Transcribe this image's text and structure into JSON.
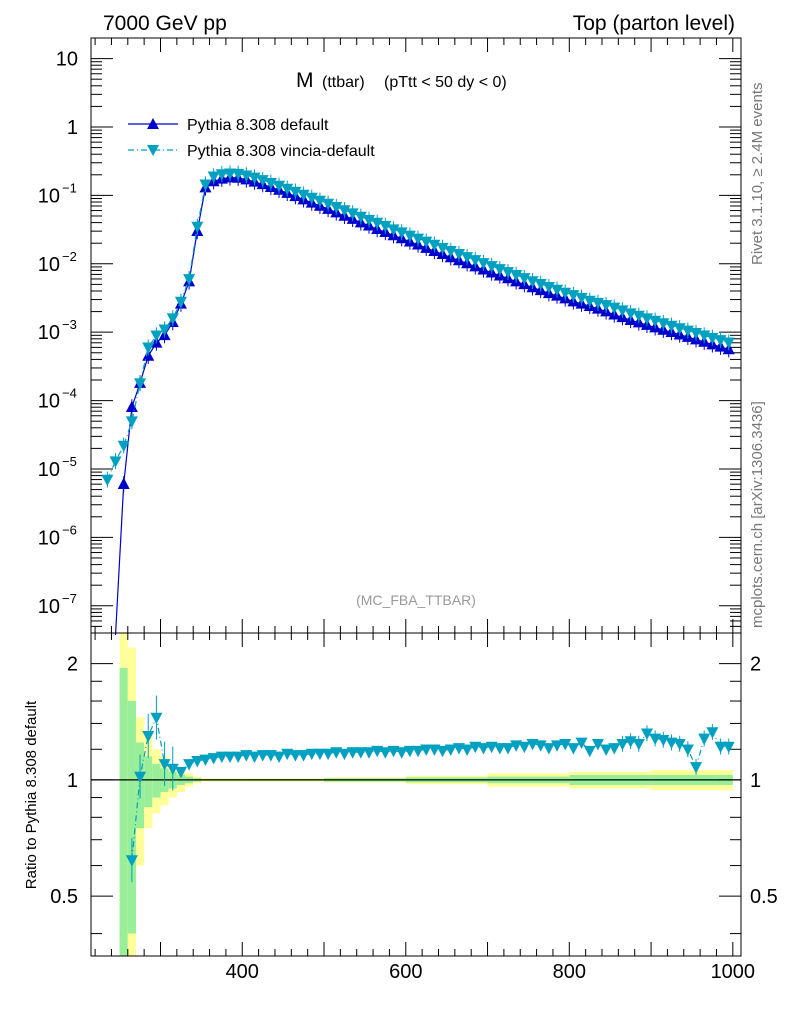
{
  "header": {
    "left": "7000 GeV pp",
    "right": "Top (parton level)"
  },
  "side_labels": {
    "rivet": "Rivet 3.1.10, ≥ 2.4M events",
    "mcplots": "mcplots.cern.ch [arXiv:1306.3436]"
  },
  "plot_title": {
    "main": "M",
    "sub": "(ttbar)",
    "cuts": "(pTtt < 50 dy < 0)"
  },
  "watermark": "(MC_FBA_TTBAR)",
  "chart_data": [
    {
      "type": "line",
      "scale": "log",
      "ylim": [
        4e-08,
        20
      ],
      "xlim": [
        215,
        1010
      ],
      "y_ticks": [
        {
          "value": 10,
          "label": "10"
        },
        {
          "value": 1,
          "label": "1"
        },
        {
          "value": 0.1,
          "label": "10",
          "exp": "−1"
        },
        {
          "value": 0.01,
          "label": "10",
          "exp": "−2"
        },
        {
          "value": 0.001,
          "label": "10",
          "exp": "−3"
        },
        {
          "value": 0.0001,
          "label": "10",
          "exp": "−4"
        },
        {
          "value": 1e-05,
          "label": "10",
          "exp": "−5"
        },
        {
          "value": 1e-06,
          "label": "10",
          "exp": "−6"
        },
        {
          "value": 1e-07,
          "label": "10",
          "exp": "−7"
        }
      ],
      "legend_position": "top-left",
      "series": [
        {
          "name": "Pythia 8.308 default",
          "color": "#0000cc",
          "marker": "triangle-up",
          "dash": "solid",
          "x": [
            245,
            255,
            265,
            275,
            285,
            295,
            305,
            315,
            325,
            335,
            345,
            355,
            365,
            375,
            385,
            395,
            405,
            415,
            425,
            435,
            445,
            455,
            465,
            475,
            485,
            495,
            505,
            515,
            525,
            535,
            545,
            555,
            565,
            575,
            585,
            595,
            605,
            615,
            625,
            635,
            645,
            655,
            665,
            675,
            685,
            695,
            705,
            715,
            725,
            735,
            745,
            755,
            765,
            775,
            785,
            795,
            805,
            815,
            825,
            835,
            845,
            855,
            865,
            875,
            885,
            895,
            905,
            915,
            925,
            935,
            945,
            955,
            965,
            975,
            985,
            995
          ],
          "y": [
            0,
            6e-06,
            8e-05,
            0.00018,
            0.00045,
            0.0007,
            0.0009,
            0.0014,
            0.0026,
            0.0055,
            0.03,
            0.13,
            0.16,
            0.175,
            0.182,
            0.18,
            0.17,
            0.158,
            0.145,
            0.132,
            0.12,
            0.108,
            0.097,
            0.087,
            0.078,
            0.07,
            0.063,
            0.056,
            0.05,
            0.045,
            0.04,
            0.036,
            0.032,
            0.029,
            0.026,
            0.0235,
            0.021,
            0.019,
            0.017,
            0.0153,
            0.0138,
            0.0124,
            0.0112,
            0.0101,
            0.0091,
            0.0082,
            0.0074,
            0.0067,
            0.0061,
            0.0055,
            0.005,
            0.0045,
            0.0041,
            0.0037,
            0.0034,
            0.0031,
            0.0028,
            0.0026,
            0.0024,
            0.0022,
            0.002,
            0.0018,
            0.00165,
            0.0015,
            0.00138,
            0.00127,
            0.00117,
            0.00108,
            0.001,
            0.00092,
            0.00085,
            0.00078,
            0.00072,
            0.00066,
            0.00061,
            0.00056
          ]
        },
        {
          "name": "Pythia 8.308 vincia-default",
          "color": "#00a0c0",
          "marker": "triangle-down",
          "dash": "dashdot",
          "x": [
            235,
            245,
            255,
            265,
            275,
            285,
            295,
            305,
            315,
            325,
            335,
            345,
            355,
            365,
            375,
            385,
            395,
            405,
            415,
            425,
            435,
            445,
            455,
            465,
            475,
            485,
            495,
            505,
            515,
            525,
            535,
            545,
            555,
            565,
            575,
            585,
            595,
            605,
            615,
            625,
            635,
            645,
            655,
            665,
            675,
            685,
            695,
            705,
            715,
            725,
            735,
            745,
            755,
            765,
            775,
            785,
            795,
            805,
            815,
            825,
            835,
            845,
            855,
            865,
            875,
            885,
            895,
            905,
            915,
            925,
            935,
            945,
            955,
            965,
            975,
            985,
            995
          ],
          "y": [
            7e-06,
            1.3e-05,
            2.2e-05,
            5e-05,
            0.00018,
            0.0006,
            0.0009,
            0.0011,
            0.0016,
            0.0028,
            0.006,
            0.035,
            0.145,
            0.19,
            0.205,
            0.21,
            0.208,
            0.197,
            0.183,
            0.168,
            0.153,
            0.139,
            0.126,
            0.114,
            0.103,
            0.093,
            0.084,
            0.076,
            0.068,
            0.061,
            0.055,
            0.049,
            0.044,
            0.04,
            0.036,
            0.032,
            0.029,
            0.026,
            0.0235,
            0.0212,
            0.0191,
            0.0172,
            0.0155,
            0.014,
            0.0126,
            0.0114,
            0.0103,
            0.0093,
            0.0084,
            0.0076,
            0.0069,
            0.0062,
            0.0056,
            0.0051,
            0.0046,
            0.0042,
            0.0038,
            0.0035,
            0.0032,
            0.0029,
            0.0027,
            0.0025,
            0.0023,
            0.0021,
            0.0019,
            0.00175,
            0.0016,
            0.00148,
            0.00136,
            0.00125,
            0.00115,
            0.00106,
            0.00098,
            0.0009,
            0.00083,
            0.00077,
            0.00071
          ]
        }
      ]
    },
    {
      "type": "line",
      "scale": "log",
      "ylabel": "Ratio to Pythia 8.308 default",
      "ylim": [
        0.35,
        2.4
      ],
      "xlim": [
        215,
        1010
      ],
      "y_ticks": [
        {
          "value": 0.5,
          "label": "0.5"
        },
        {
          "value": 1,
          "label": "1"
        },
        {
          "value": 2,
          "label": "2"
        }
      ],
      "x_ticks": [
        {
          "value": 400,
          "label": "400"
        },
        {
          "value": 600,
          "label": "600"
        },
        {
          "value": 800,
          "label": "800"
        },
        {
          "value": 1000,
          "label": "1000"
        }
      ],
      "reference_line": 1,
      "bands": {
        "x_edges": [
          250,
          260,
          270,
          280,
          290,
          300,
          310,
          320,
          330,
          340,
          350,
          400,
          500,
          600,
          700,
          800,
          900,
          1000
        ],
        "outer_color": "#ffff99",
        "inner_color": "#99ee99",
        "outer_lo": [
          0.3,
          0.3,
          0.6,
          0.75,
          0.82,
          0.86,
          0.9,
          0.93,
          0.96,
          0.98,
          0.99,
          0.99,
          0.985,
          0.975,
          0.96,
          0.95,
          0.94
        ],
        "outer_hi": [
          2.5,
          2.2,
          1.45,
          1.3,
          1.2,
          1.15,
          1.1,
          1.07,
          1.04,
          1.02,
          1.01,
          1.01,
          1.015,
          1.025,
          1.04,
          1.05,
          1.06
        ],
        "inner_lo": [
          0.3,
          0.4,
          0.75,
          0.85,
          0.9,
          0.93,
          0.95,
          0.97,
          0.98,
          0.99,
          0.995,
          0.995,
          0.99,
          0.985,
          0.98,
          0.97,
          0.97
        ],
        "inner_hi": [
          1.95,
          1.6,
          1.25,
          1.15,
          1.1,
          1.07,
          1.05,
          1.03,
          1.02,
          1.01,
          1.005,
          1.005,
          1.01,
          1.015,
          1.02,
          1.03,
          1.03
        ]
      },
      "series": [
        {
          "name": "Pythia 8.308 vincia-default",
          "color": "#00a0c0",
          "marker": "triangle-down",
          "dash": "dashdot",
          "x": [
            265,
            275,
            285,
            295,
            305,
            315,
            325,
            335,
            345,
            355,
            365,
            375,
            385,
            395,
            405,
            415,
            425,
            435,
            445,
            455,
            465,
            475,
            485,
            495,
            505,
            515,
            525,
            535,
            545,
            555,
            565,
            575,
            585,
            595,
            605,
            615,
            625,
            635,
            645,
            655,
            665,
            675,
            685,
            695,
            705,
            715,
            725,
            735,
            745,
            755,
            765,
            775,
            785,
            795,
            805,
            815,
            825,
            835,
            845,
            855,
            865,
            875,
            885,
            895,
            905,
            915,
            925,
            935,
            945,
            955,
            965,
            975,
            985,
            995
          ],
          "y": [
            0.62,
            1.02,
            1.3,
            1.45,
            1.1,
            1.07,
            1.05,
            1.1,
            1.12,
            1.13,
            1.14,
            1.15,
            1.15,
            1.15,
            1.16,
            1.15,
            1.16,
            1.16,
            1.15,
            1.17,
            1.16,
            1.16,
            1.17,
            1.17,
            1.17,
            1.18,
            1.17,
            1.18,
            1.18,
            1.18,
            1.19,
            1.18,
            1.19,
            1.18,
            1.19,
            1.19,
            1.2,
            1.2,
            1.19,
            1.2,
            1.21,
            1.2,
            1.22,
            1.21,
            1.22,
            1.21,
            1.21,
            1.23,
            1.22,
            1.24,
            1.23,
            1.21,
            1.23,
            1.24,
            1.21,
            1.25,
            1.19,
            1.24,
            1.2,
            1.21,
            1.24,
            1.26,
            1.24,
            1.32,
            1.28,
            1.27,
            1.25,
            1.24,
            1.2,
            1.08,
            1.28,
            1.33,
            1.22,
            1.22
          ]
        }
      ]
    }
  ]
}
